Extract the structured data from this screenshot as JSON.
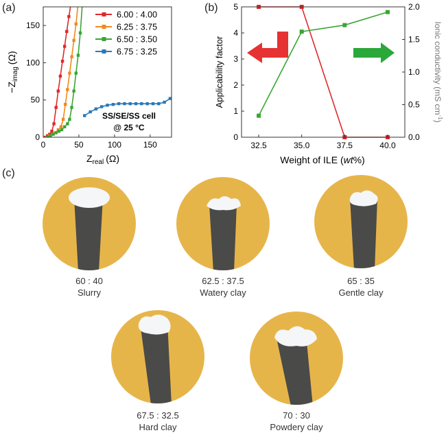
{
  "panels": {
    "a": "(a)",
    "b": "(b)",
    "c": "(c)"
  },
  "chart_data": [
    {
      "type": "line",
      "xlabel_main": "Z",
      "xlabel_sub": "real",
      "xlabel_unit": "(Ω)",
      "ylabel_main": "−Z",
      "ylabel_sub": "imag",
      "ylabel_unit": "(Ω)",
      "xlim": [
        0,
        180
      ],
      "ylim": [
        0,
        175
      ],
      "xticks": [
        0,
        50,
        100,
        150
      ],
      "yticks": [
        0,
        50,
        100,
        150
      ],
      "annotation_lines": [
        "SS/SE/SS cell",
        "@ 25 °C"
      ],
      "legend_position": "top-right",
      "series": [
        {
          "name": "6.00 : 4.00",
          "color": "#e0282b",
          "x": [
            3,
            6,
            9,
            12,
            15,
            18,
            21,
            24,
            27,
            30,
            33,
            36,
            39
          ],
          "y": [
            0,
            2,
            4,
            8,
            18,
            40,
            62,
            82,
            102,
            122,
            142,
            162,
            180
          ]
        },
        {
          "name": "6.25 : 3.75",
          "color": "#f08a1c",
          "x": [
            5,
            9,
            13,
            17,
            21,
            25,
            28,
            31,
            34,
            37,
            40,
            43,
            46,
            49
          ],
          "y": [
            0,
            2,
            4,
            6,
            10,
            14,
            24,
            44,
            64,
            86,
            108,
            130,
            152,
            180
          ]
        },
        {
          "name": "6.50 : 3.50",
          "color": "#3aa535",
          "x": [
            6,
            10,
            14,
            18,
            22,
            26,
            30,
            34,
            37,
            40,
            43,
            46,
            49,
            52,
            55
          ],
          "y": [
            0,
            2,
            4,
            6,
            8,
            10,
            14,
            18,
            24,
            40,
            62,
            86,
            110,
            140,
            180
          ]
        },
        {
          "name": "6.75 : 3.25",
          "color": "#2a78b8",
          "x": [
            58,
            66,
            74,
            82,
            90,
            98,
            106,
            114,
            122,
            130,
            138,
            146,
            154,
            162,
            170,
            178
          ],
          "y": [
            29,
            34,
            38,
            41,
            43,
            44,
            45,
            45,
            45,
            45,
            45,
            45,
            45,
            45,
            47,
            52
          ]
        }
      ]
    },
    {
      "type": "line",
      "xlabel_main": "Weight of ILE (",
      "xlabel_italic": "wt",
      "xlabel_tail": "%)",
      "ylabel_left": "Applicability factor",
      "ylabel_right": "Ionic conductivity (mS cm",
      "ylabel_right_sup": "-1",
      "ylabel_right_tail": ")",
      "categories": [
        "32.5",
        "35.0",
        "37.5",
        "40.0"
      ],
      "xlim": [
        31.5,
        41
      ],
      "ylim_left": [
        0,
        5
      ],
      "ylim_right": [
        0,
        2.0
      ],
      "yticks_left": [
        "0",
        "1",
        "2",
        "3",
        "4",
        "5"
      ],
      "yticks_right": [
        "0.0",
        "0.5",
        "1.0",
        "1.5",
        "2.0"
      ],
      "series": [
        {
          "axis": "left",
          "color": "#e0282b",
          "x": [
            32.5,
            35.0,
            37.5,
            40.0
          ],
          "y": [
            5,
            5,
            0,
            0
          ]
        },
        {
          "axis": "right",
          "color": "#3aa535",
          "x": [
            32.5,
            35.0,
            37.5,
            40.0
          ],
          "y": [
            0.33,
            1.62,
            1.72,
            1.92
          ]
        }
      ],
      "arrows": [
        {
          "direction": "left",
          "color": "#e63232"
        },
        {
          "direction": "right",
          "color": "#2aa83a"
        }
      ]
    }
  ],
  "samples": [
    {
      "ratio": "60 : 40",
      "label": "Slurry"
    },
    {
      "ratio": "62.5 : 37.5",
      "label": "Watery clay"
    },
    {
      "ratio": "65 : 35",
      "label": "Gentle clay"
    },
    {
      "ratio": "67.5 : 32.5",
      "label": "Hard clay"
    },
    {
      "ratio": "70 : 30",
      "label": "Powdery clay"
    }
  ],
  "colors": {
    "photo_bg": "#e6b54a",
    "rod": "#4a4a48",
    "paste": "#f4f6f8"
  }
}
